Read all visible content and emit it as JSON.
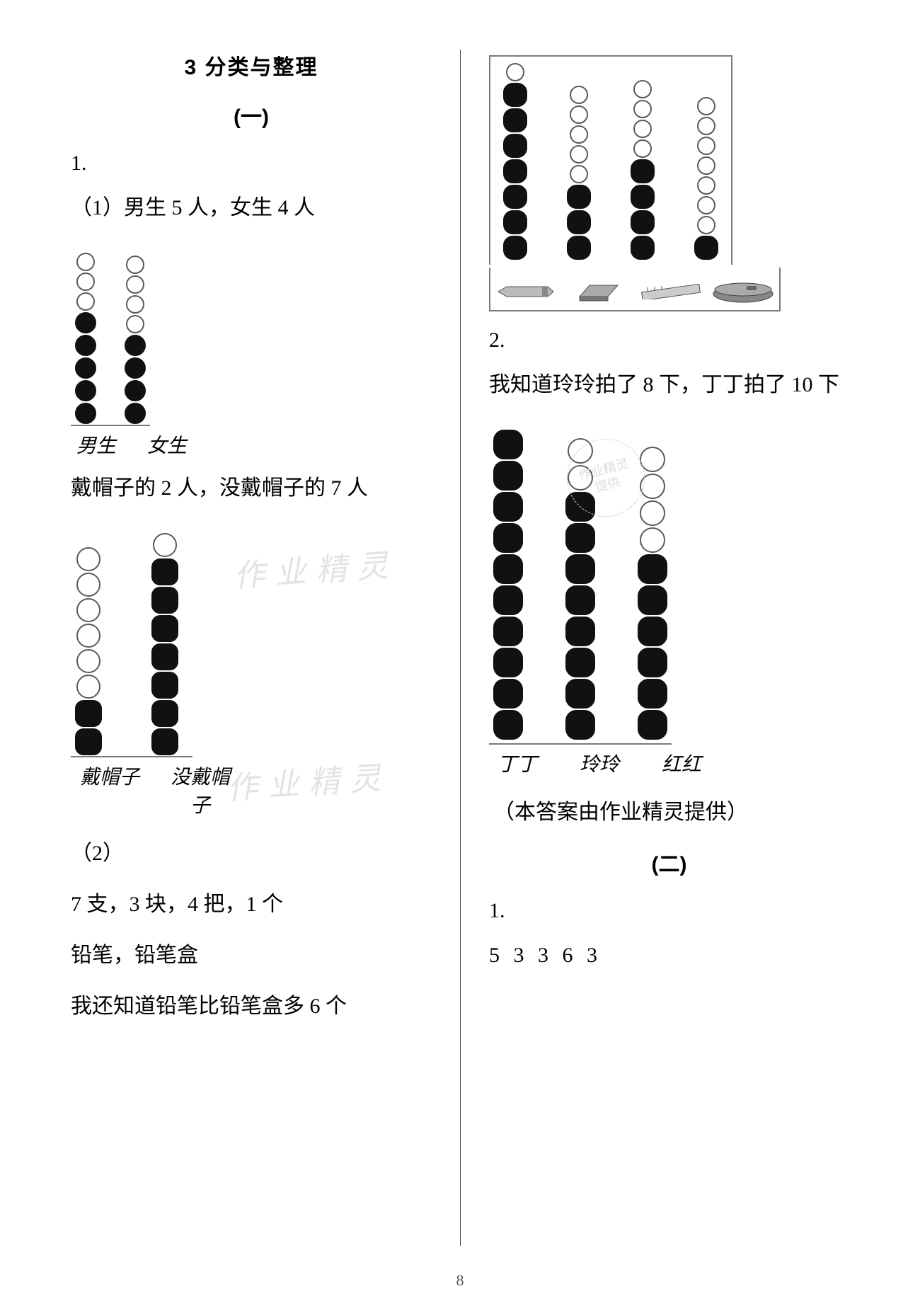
{
  "page_number": "8",
  "watermark_text": "作业精灵",
  "left": {
    "section_title": "3 分类与整理",
    "part_label": "(一)",
    "q1_num": "1.",
    "q1_1_label": "（1）男生 5 人，女生 4 人",
    "chart1": {
      "total": 8,
      "columns": [
        {
          "label": "男生",
          "filled": 5
        },
        {
          "label": "女生",
          "filled": 4
        }
      ]
    },
    "line_hat": "戴帽子的 2 人，没戴帽子的 7 人",
    "chart2": {
      "total": 8,
      "columns": [
        {
          "label": "戴帽子",
          "filled": 2
        },
        {
          "label": "没戴帽子",
          "filled": 7
        }
      ]
    },
    "q1_2_label": "（2）",
    "line_counts": "7 支，3 块，4 把，1 个",
    "line_items": "铅笔，铅笔盒",
    "line_more": "我还知道铅笔比铅笔盒多 6 个"
  },
  "right": {
    "chart_top": {
      "total": 8,
      "columns": [
        {
          "filled": 7,
          "icon": "pencil"
        },
        {
          "filled": 3,
          "icon": "eraser"
        },
        {
          "filled": 4,
          "icon": "ruler"
        },
        {
          "filled": 1,
          "icon": "pencilcase"
        }
      ]
    },
    "q2_num": "2.",
    "line_know": "我知道玲玲拍了 8 下，丁丁拍了 10 下",
    "chart_kids": {
      "total": 10,
      "columns": [
        {
          "label": "丁丁",
          "filled": 10
        },
        {
          "label": "玲玲",
          "filled": 8
        },
        {
          "label": "红红",
          "filled": 6
        }
      ]
    },
    "credit": "（本答案由作业精灵提供）",
    "part2_label": "(二)",
    "q1_num": "1.",
    "answers": "5   3   3   6   3"
  },
  "stamp_text": "作业精灵\n提供"
}
